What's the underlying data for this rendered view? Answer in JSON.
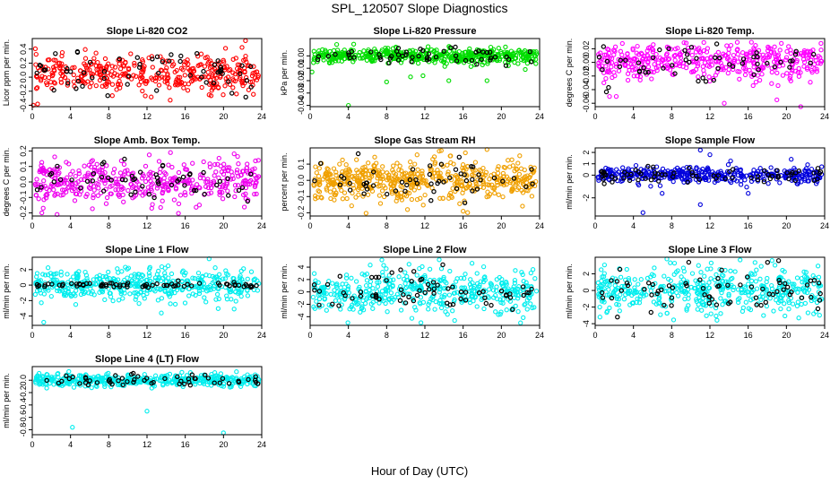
{
  "figure": {
    "title": "SPL_120507  Slope Diagnostics",
    "xlabel": "Hour of Day (UTC)"
  },
  "chart_data": [
    {
      "type": "scatter",
      "title": "Slope Li-820 CO2",
      "ylabel": "Licor ppm per min.",
      "color": "#ff0000",
      "xlim": [
        0,
        24
      ],
      "xticks": [
        "0",
        "4",
        "8",
        "12",
        "16",
        "20",
        "24"
      ],
      "ylim": [
        -0.42,
        0.55
      ],
      "yticks": [
        "-0.4",
        "-0.2",
        "0.0",
        "0.2",
        "0.4"
      ],
      "ytick_values": [
        -0.4,
        -0.2,
        0,
        0.2,
        0.4
      ],
      "center": 0.05,
      "spread": 0.13,
      "n_colored": 380,
      "n_black": 60,
      "outliers": [
        {
          "x": 0.1,
          "y": -0.4
        },
        {
          "x": 22.3,
          "y": 0.52
        },
        {
          "x": 18.5,
          "y": -0.25
        }
      ]
    },
    {
      "type": "scatter",
      "title": "Slope Li-820 Pressure",
      "ylabel": "kPa per min.",
      "color": "#00dd00",
      "xlim": [
        0,
        24
      ],
      "xticks": [
        "0",
        "4",
        "8",
        "12",
        "16",
        "20",
        "24"
      ],
      "ylim": [
        -0.041,
        0.014
      ],
      "yticks": [
        "-0.04",
        "-0.03",
        "-0.02",
        "-0.01",
        "0.00"
      ],
      "ytick_values": [
        -0.04,
        -0.03,
        -0.02,
        -0.01,
        0
      ],
      "center": 0.0,
      "spread": 0.003,
      "n_colored": 500,
      "n_black": 55,
      "outliers": [
        {
          "x": 4.0,
          "y": -0.04
        },
        {
          "x": 18.5,
          "y": -0.02
        },
        {
          "x": 8.0,
          "y": -0.021
        },
        {
          "x": 10.5,
          "y": -0.017
        },
        {
          "x": 0.2,
          "y": -0.013
        },
        {
          "x": 11.8,
          "y": -0.016
        },
        {
          "x": 22.5,
          "y": -0.011
        },
        {
          "x": 14.5,
          "y": -0.02
        }
      ]
    },
    {
      "type": "scatter",
      "title": "Slope Li-820 Temp.",
      "ylabel": "degrees C per min.",
      "color": "#ff00ff",
      "xlim": [
        0,
        24
      ],
      "xticks": [
        "0",
        "4",
        "8",
        "12",
        "16",
        "20",
        "24"
      ],
      "ylim": [
        -0.065,
        0.035
      ],
      "yticks": [
        "-0.06",
        "-0.04",
        "-0.02",
        "0.00",
        "0.02"
      ],
      "ytick_values": [
        -0.06,
        -0.04,
        -0.02,
        0,
        0.02
      ],
      "center": 0.0,
      "spread": 0.013,
      "n_colored": 420,
      "n_black": 55,
      "outliers": [
        {
          "x": 1.5,
          "y": -0.05
        },
        {
          "x": 2.2,
          "y": -0.05
        },
        {
          "x": 13.5,
          "y": -0.06
        },
        {
          "x": 21.5,
          "y": -0.065
        },
        {
          "x": 19.0,
          "y": -0.055
        }
      ]
    },
    {
      "type": "scatter",
      "title": "Slope Amb. Box Temp.",
      "ylabel": "degrees C per min.",
      "color": "#ee00ee",
      "xlim": [
        0,
        24
      ],
      "xticks": [
        "0",
        "4",
        "8",
        "12",
        "16",
        "20",
        "24"
      ],
      "ylim": [
        -0.22,
        0.22
      ],
      "yticks": [
        "-0.2",
        "-0.1",
        "0.0",
        "0.1",
        "0.2"
      ],
      "ytick_values": [
        -0.2,
        -0.1,
        0,
        0.1,
        0.2
      ],
      "center": 0.0,
      "spread": 0.07,
      "n_colored": 420,
      "n_black": 55,
      "outliers": [
        {
          "x": 1.0,
          "y": -0.2
        },
        {
          "x": 2.6,
          "y": -0.21
        },
        {
          "x": 12.5,
          "y": -0.17
        }
      ]
    },
    {
      "type": "scatter",
      "title": "Slope Gas Stream RH",
      "ylabel": "percent per min.",
      "color": "#f0a000",
      "xlim": [
        0,
        24
      ],
      "xticks": [
        "0",
        "4",
        "8",
        "12",
        "16",
        "20",
        "24"
      ],
      "ylim": [
        -0.22,
        0.2
      ],
      "yticks": [
        "-0.2",
        "-0.1",
        "0.0",
        "0.1"
      ],
      "ytick_values": [
        -0.2,
        -0.1,
        0,
        0.1
      ],
      "center": 0.0,
      "spread": 0.06,
      "n_colored": 520,
      "n_black": 55,
      "outliers": [
        {
          "x": 18.5,
          "y": 0.19
        },
        {
          "x": 16.0,
          "y": -0.19
        },
        {
          "x": 13.5,
          "y": 0.18
        }
      ]
    },
    {
      "type": "scatter",
      "title": "Slope Sample Flow",
      "ylabel": "ml/min per min.",
      "color": "#0000dd",
      "xlim": [
        0,
        24
      ],
      "xticks": [
        "0",
        "4",
        "8",
        "12",
        "16",
        "20",
        "24"
      ],
      "ylim": [
        -3.6,
        2.4
      ],
      "yticks": [
        "-2",
        "0",
        "1",
        "2"
      ],
      "ytick_values": [
        -2,
        0,
        1,
        2
      ],
      "center": 0.0,
      "spread": 0.35,
      "n_colored": 380,
      "n_black": 70,
      "outliers": [
        {
          "x": 5.0,
          "y": -3.3
        },
        {
          "x": 11.0,
          "y": -2.6
        },
        {
          "x": 11.0,
          "y": 2.2
        },
        {
          "x": 12.0,
          "y": 1.8
        },
        {
          "x": 7.0,
          "y": -1.6
        },
        {
          "x": 16.0,
          "y": -1.6
        },
        {
          "x": 20.5,
          "y": 1.4
        }
      ]
    },
    {
      "type": "scatter",
      "title": "Slope Line 1 Flow",
      "ylabel": "ml/min per min.",
      "color": "#00eeee",
      "xlim": [
        0,
        24
      ],
      "xticks": [
        "0",
        "4",
        "8",
        "12",
        "16",
        "20",
        "24"
      ],
      "ylim": [
        -5.2,
        3.6
      ],
      "yticks": [
        "-4",
        "-2",
        "0",
        "2"
      ],
      "ytick_values": [
        -4,
        -2,
        0,
        2
      ],
      "center": 0.0,
      "spread": 1.0,
      "n_colored": 450,
      "n_black": 70,
      "black_spread": 0.15,
      "outliers": [
        {
          "x": 1.2,
          "y": -4.8
        },
        {
          "x": 18.5,
          "y": 3.4
        },
        {
          "x": 13.5,
          "y": -3.6
        }
      ]
    },
    {
      "type": "scatter",
      "title": "Slope Line 2 Flow",
      "ylabel": "ml/min per min.",
      "color": "#00eeee",
      "xlim": [
        0,
        24
      ],
      "xticks": [
        "0",
        "4",
        "8",
        "12",
        "16",
        "20",
        "24"
      ],
      "ylim": [
        -5.4,
        5.6
      ],
      "yticks": [
        "-4",
        "-2",
        "0",
        "2",
        "4"
      ],
      "ytick_values": [
        -4,
        -2,
        0,
        2,
        4
      ],
      "center": 0.0,
      "spread": 1.8,
      "n_colored": 450,
      "n_black": 70,
      "outliers": [
        {
          "x": 22.0,
          "y": -5.0
        },
        {
          "x": 13.5,
          "y": 5.2
        }
      ]
    },
    {
      "type": "scatter",
      "title": "Slope Line 3 Flow",
      "ylabel": "ml/min per min.",
      "color": "#00eeee",
      "xlim": [
        0,
        24
      ],
      "xticks": [
        "0",
        "4",
        "8",
        "12",
        "16",
        "20",
        "24"
      ],
      "ylim": [
        -4.2,
        4.0
      ],
      "yticks": [
        "-4",
        "-2",
        "0",
        "2"
      ],
      "ytick_values": [
        -4,
        -2,
        0,
        2
      ],
      "center": 0.0,
      "spread": 1.3,
      "n_colored": 450,
      "n_black": 70,
      "outliers": [
        {
          "x": 7.5,
          "y": 3.8
        },
        {
          "x": 18.5,
          "y": 3.6
        },
        {
          "x": 0.5,
          "y": -3.2
        }
      ]
    },
    {
      "type": "scatter",
      "title": "Slope Line 4 (LT) Flow",
      "ylabel": "ml/min per min.",
      "color": "#00eeee",
      "xlim": [
        0,
        24
      ],
      "xticks": [
        "0",
        "4",
        "8",
        "12",
        "16",
        "20",
        "24"
      ],
      "ylim": [
        -0.88,
        0.22
      ],
      "yticks": [
        "-0.8",
        "-0.6",
        "-0.4",
        "-0.2",
        "0.0"
      ],
      "ytick_values": [
        -0.8,
        -0.6,
        -0.4,
        -0.2,
        0
      ],
      "center": 0.0,
      "spread": 0.05,
      "n_colored": 420,
      "n_black": 55,
      "outliers": [
        {
          "x": 4.2,
          "y": -0.76
        },
        {
          "x": 12.0,
          "y": -0.5
        },
        {
          "x": 20.0,
          "y": -0.85
        }
      ]
    }
  ]
}
